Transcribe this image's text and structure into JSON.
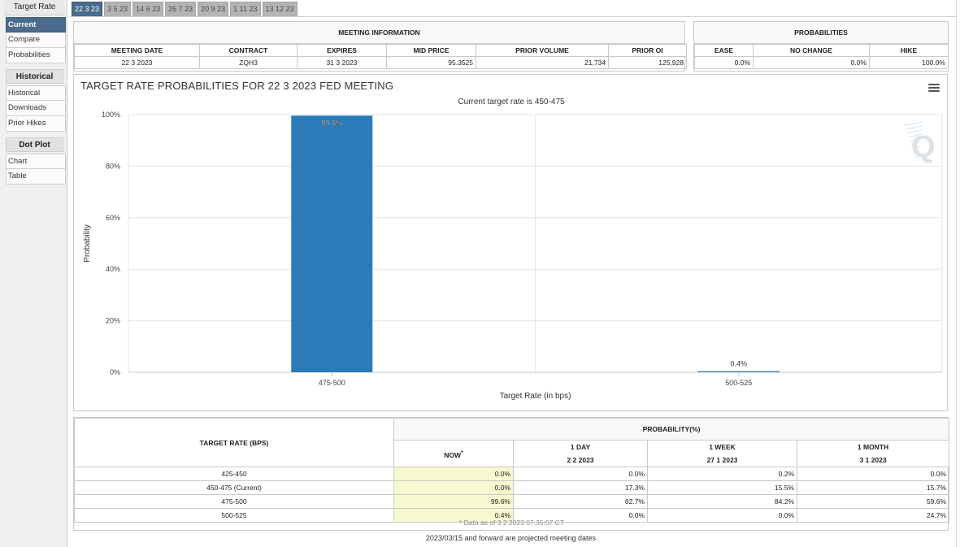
{
  "sidebar": {
    "title": "Target Rate",
    "items_top": [
      "Current",
      "Compare",
      "Probabilities"
    ],
    "group_historical": "Historical",
    "items_historical": [
      "Historical",
      "Downloads",
      "Prior Hikes"
    ],
    "group_dotplot": "Dot Plot",
    "items_dotplot": [
      "Chart",
      "Table"
    ]
  },
  "tabs": [
    "22 3 23",
    "3 5 23",
    "14 6 23",
    "26 7 23",
    "20 9 23",
    "1 11 23",
    "13 12 23"
  ],
  "meeting_info": {
    "caption": "MEETING INFORMATION",
    "headers": [
      "MEETING DATE",
      "CONTRACT",
      "EXPIRES",
      "MID PRICE",
      "PRIOR VOLUME",
      "PRIOR OI"
    ],
    "values": [
      "22 3 2023",
      "ZQH3",
      "31 3 2023",
      "95.3525",
      "21,734",
      "125,928"
    ]
  },
  "probabilities": {
    "caption": "PROBABILITIES",
    "headers": [
      "EASE",
      "NO CHANGE",
      "HIKE"
    ],
    "values": [
      "0.0%",
      "0.0%",
      "100.0%"
    ]
  },
  "chart": {
    "title": "TARGET RATE PROBABILITIES FOR 22 3 2023 FED MEETING",
    "subtitle": "Current target rate is 450-475",
    "logo_letter": "Q"
  },
  "chart_data": {
    "type": "bar",
    "categories": [
      "475-500",
      "500-525"
    ],
    "values": [
      99.6,
      0.4
    ],
    "value_labels": [
      "99.6%",
      "0.4%"
    ],
    "xlabel": "Target Rate (in bps)",
    "ylabel": "Probability",
    "ylim": [
      0,
      100
    ],
    "yticks": [
      "0%",
      "20%",
      "40%",
      "60%",
      "80%",
      "100%"
    ],
    "bar_color": "#2b7bb9",
    "grid": true
  },
  "prob_table": {
    "col_target": "TARGET RATE (BPS)",
    "caption": "PROBABILITY(%)",
    "col_now": "NOW",
    "col_now_mark": "*",
    "col_1day": "1 DAY",
    "col_1day_date": "2 2 2023",
    "col_1week": "1 WEEK",
    "col_1week_date": "27 1 2023",
    "col_1month": "1 MONTH",
    "col_1month_date": "3 1 2023",
    "rows": [
      {
        "rate": "425-450",
        "now": "0.0%",
        "day": "0.0%",
        "week": "0.2%",
        "month": "0.0%"
      },
      {
        "rate": "450-475 (Current)",
        "now": "0.0%",
        "day": "17.3%",
        "week": "15.5%",
        "month": "15.7%"
      },
      {
        "rate": "475-500",
        "now": "99.6%",
        "day": "82.7%",
        "week": "84.2%",
        "month": "59.6%"
      },
      {
        "rate": "500-525",
        "now": "0.4%",
        "day": "0.0%",
        "week": "0.0%",
        "month": "24.7%"
      }
    ],
    "footnote": "* Data as of 3 2 2023 07:35:07 CT"
  },
  "bottom_note": "2023/03/15 and forward are projected meeting dates"
}
